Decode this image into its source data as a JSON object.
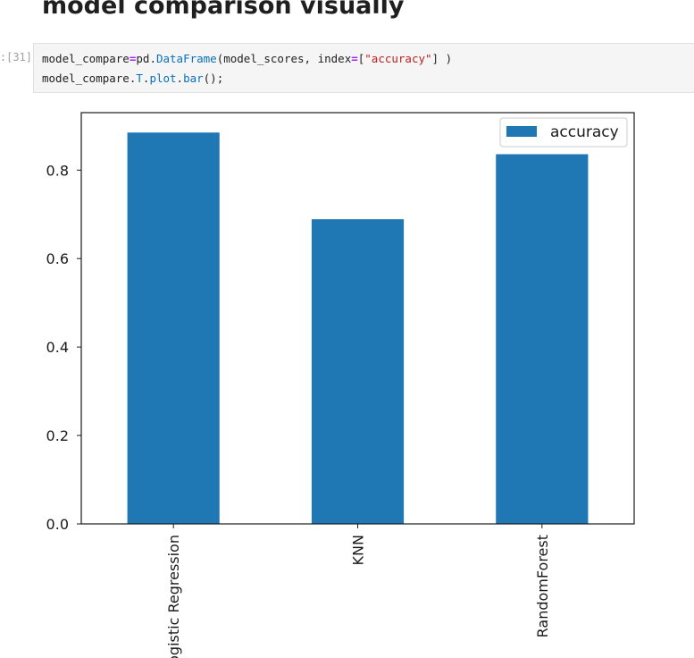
{
  "notebook": {
    "heading": "model comparison visually",
    "cell_prompt": "[31]:",
    "code": {
      "line1": [
        {
          "t": "model_compare",
          "c": "pl"
        },
        {
          "t": "=",
          "c": "op"
        },
        {
          "t": "pd",
          "c": "pl"
        },
        {
          "t": ".",
          "c": "pl"
        },
        {
          "t": "DataFrame",
          "c": "attr"
        },
        {
          "t": "(model_scores, index",
          "c": "pl"
        },
        {
          "t": "=",
          "c": "op"
        },
        {
          "t": "[",
          "c": "pl"
        },
        {
          "t": "\"accuracy\"",
          "c": "str"
        },
        {
          "t": "] )",
          "c": "pl"
        }
      ],
      "line2": [
        {
          "t": "model_compare",
          "c": "pl"
        },
        {
          "t": ".",
          "c": "pl"
        },
        {
          "t": "T",
          "c": "attr"
        },
        {
          "t": ".",
          "c": "pl"
        },
        {
          "t": "plot",
          "c": "attr"
        },
        {
          "t": ".",
          "c": "pl"
        },
        {
          "t": "bar",
          "c": "attr"
        },
        {
          "t": "();",
          "c": "pl"
        }
      ]
    }
  },
  "chart_data": {
    "type": "bar",
    "categories": [
      "Logistic Regression",
      "KNN",
      "RandomForest"
    ],
    "series": [
      {
        "name": "accuracy",
        "values": [
          0.885,
          0.689,
          0.836
        ]
      }
    ],
    "ylim": [
      0,
      0.93
    ],
    "yticks": [
      "0.0",
      "0.2",
      "0.4",
      "0.6",
      "0.8"
    ],
    "legend": "top-right",
    "bar_color": "#1f77b4",
    "grid": false,
    "xlabel": "",
    "ylabel": "",
    "title": ""
  }
}
